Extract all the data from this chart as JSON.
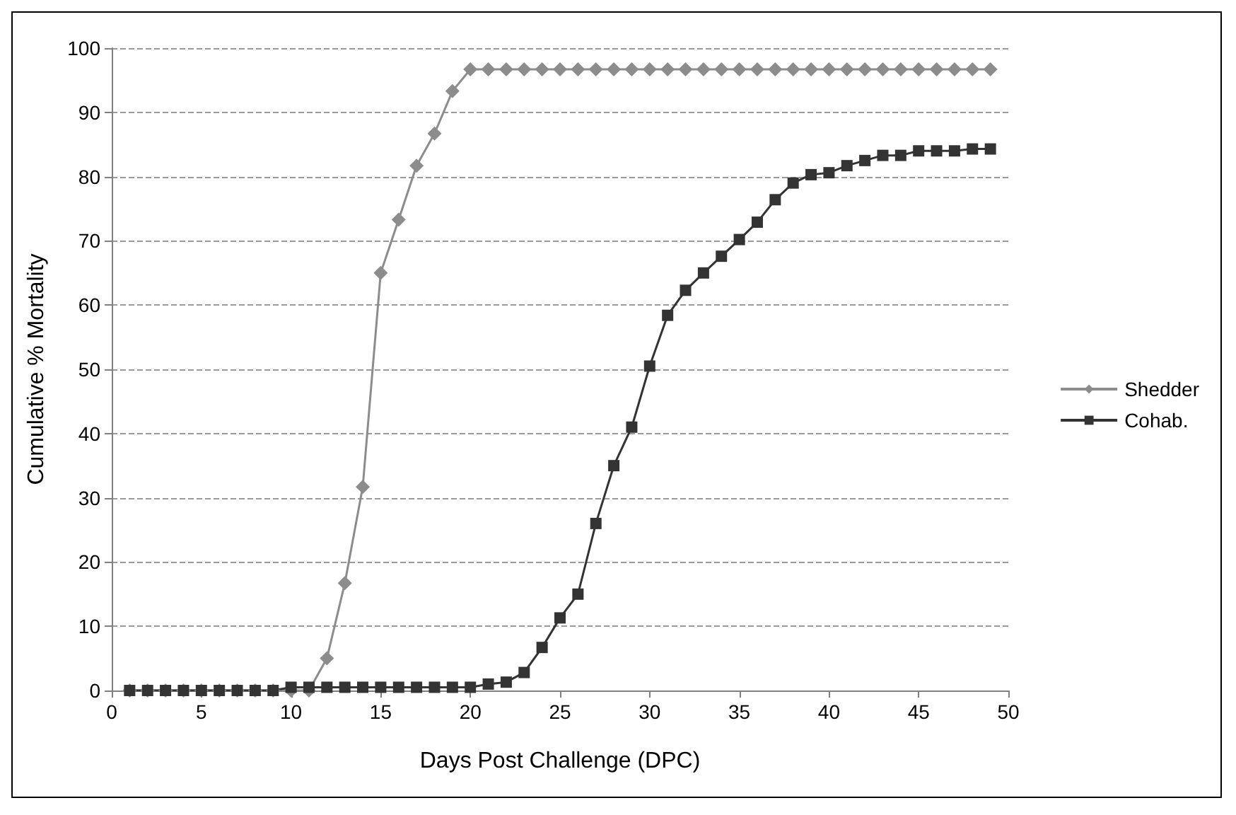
{
  "chart_data": {
    "type": "line",
    "xlabel": "Days Post Challenge (DPC)",
    "ylabel": "Cumulative % Mortality",
    "x": [
      1,
      2,
      3,
      4,
      5,
      6,
      7,
      8,
      9,
      10,
      11,
      12,
      13,
      14,
      15,
      16,
      17,
      18,
      19,
      20,
      21,
      22,
      23,
      24,
      25,
      26,
      27,
      28,
      29,
      30,
      31,
      32,
      33,
      34,
      35,
      36,
      37,
      38,
      39,
      40,
      41,
      42,
      43,
      44,
      45,
      46,
      47,
      48,
      49
    ],
    "series": [
      {
        "name": "Shedder",
        "color": "#8c8c8c",
        "marker": "diamond",
        "values": [
          0,
          0,
          0,
          0,
          0,
          0,
          0,
          0,
          0,
          0,
          0,
          5,
          16.7,
          31.7,
          65,
          73.3,
          81.7,
          86.7,
          93.3,
          96.7,
          96.7,
          96.7,
          96.7,
          96.7,
          96.7,
          96.7,
          96.7,
          96.7,
          96.7,
          96.7,
          96.7,
          96.7,
          96.7,
          96.7,
          96.7,
          96.7,
          96.7,
          96.7,
          96.7,
          96.7,
          96.7,
          96.7,
          96.7,
          96.7,
          96.7,
          96.7,
          96.7,
          96.7,
          96.7
        ]
      },
      {
        "name": "Cohab.",
        "color": "#333333",
        "marker": "square",
        "values": [
          0,
          0,
          0,
          0,
          0,
          0,
          0,
          0,
          0,
          0.5,
          0.5,
          0.5,
          0.5,
          0.5,
          0.5,
          0.5,
          0.5,
          0.5,
          0.5,
          0.5,
          1,
          1.3,
          2.8,
          6.7,
          11.3,
          15,
          26,
          35,
          41,
          50.5,
          58.4,
          62.3,
          65,
          67.6,
          70.2,
          72.9,
          76.4,
          79,
          80.3,
          80.6,
          81.7,
          82.5,
          83.3,
          83.3,
          84,
          84,
          84,
          84.3,
          84.3
        ]
      }
    ],
    "xlim": [
      0,
      50
    ],
    "xticks": [
      0,
      5,
      10,
      15,
      20,
      25,
      30,
      35,
      40,
      45,
      50
    ],
    "ylim": [
      0,
      100
    ],
    "yticks": [
      0,
      10,
      20,
      30,
      40,
      50,
      60,
      70,
      80,
      90,
      100
    ],
    "grid": "y",
    "legend": "right",
    "line_style": "solid"
  }
}
